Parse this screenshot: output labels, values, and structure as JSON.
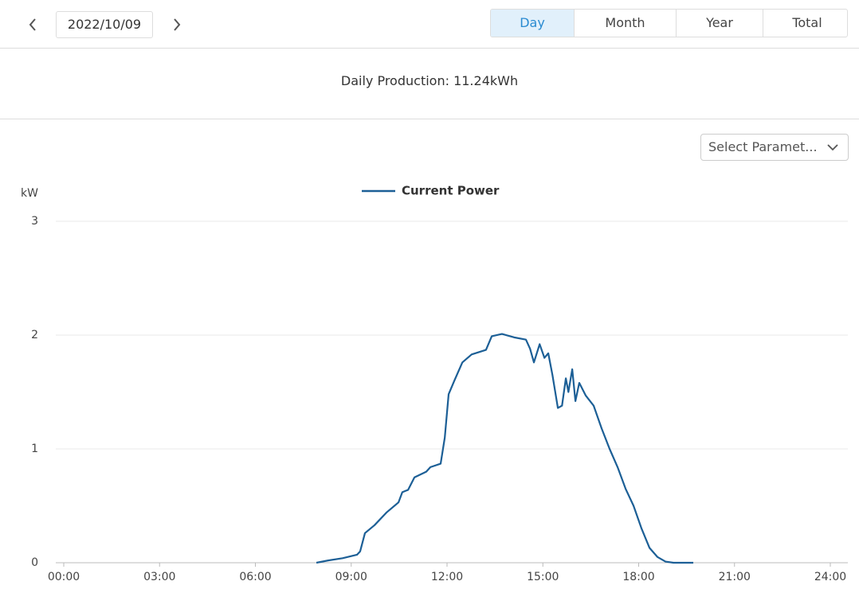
{
  "toolbar": {
    "date": "2022/10/09",
    "tabs": [
      "Day",
      "Month",
      "Year",
      "Total"
    ],
    "active_tab": "Day"
  },
  "summary": "Daily Production: 11.24kWh",
  "parameter_select": "Select Paramet...",
  "chart_data": {
    "type": "line",
    "y_label": "kW",
    "legend": "top",
    "xlim": [
      0,
      24
    ],
    "xticks": [
      {
        "value": 0,
        "label": "00:00"
      },
      {
        "value": 3,
        "label": "03:00"
      },
      {
        "value": 6,
        "label": "06:00"
      },
      {
        "value": 9,
        "label": "09:00"
      },
      {
        "value": 12,
        "label": "12:00"
      },
      {
        "value": 15,
        "label": "15:00"
      },
      {
        "value": 18,
        "label": "18:00"
      },
      {
        "value": 21,
        "label": "21:00"
      },
      {
        "value": 24,
        "label": "24:00"
      }
    ],
    "ylim": [
      0,
      3
    ],
    "yticks": [
      0,
      1,
      2,
      3
    ],
    "grid": true,
    "series": [
      {
        "name": "Current Power",
        "color": "#1c5f96",
        "x": [
          7.91,
          8.28,
          8.73,
          9.18,
          9.28,
          9.43,
          9.73,
          10.1,
          10.48,
          10.6,
          10.78,
          10.98,
          11.35,
          11.48,
          11.8,
          11.93,
          12.05,
          12.23,
          12.48,
          12.77,
          13.22,
          13.4,
          13.72,
          14.1,
          14.47,
          14.6,
          14.72,
          14.9,
          15.05,
          15.17,
          15.3,
          15.47,
          15.6,
          15.72,
          15.8,
          15.92,
          16.02,
          16.14,
          16.34,
          16.59,
          16.84,
          17.09,
          17.34,
          17.59,
          17.84,
          18.09,
          18.34,
          18.59,
          18.84,
          19.09,
          19.71
        ],
        "values": [
          0,
          0.02,
          0.04,
          0.07,
          0.1,
          0.26,
          0.33,
          0.44,
          0.53,
          0.62,
          0.64,
          0.75,
          0.8,
          0.84,
          0.87,
          1.1,
          1.48,
          1.6,
          1.76,
          1.83,
          1.87,
          1.99,
          2.01,
          1.98,
          1.96,
          1.88,
          1.76,
          1.92,
          1.8,
          1.84,
          1.65,
          1.36,
          1.38,
          1.62,
          1.5,
          1.7,
          1.42,
          1.58,
          1.47,
          1.38,
          1.18,
          1.0,
          0.84,
          0.65,
          0.5,
          0.3,
          0.13,
          0.05,
          0.01,
          0,
          0
        ]
      }
    ]
  }
}
